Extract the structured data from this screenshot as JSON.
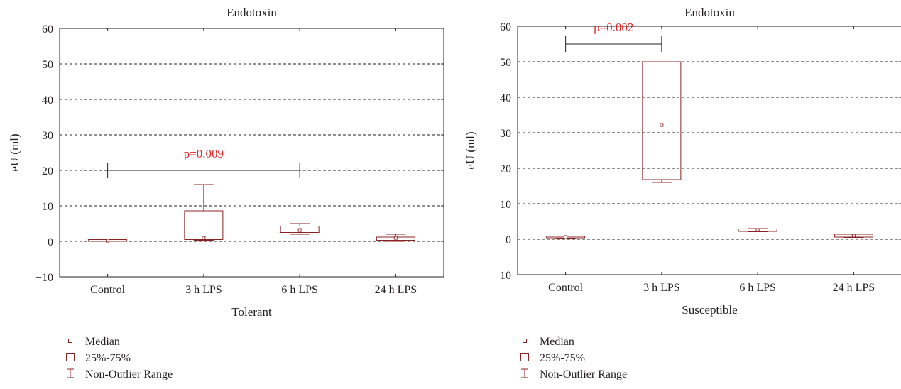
{
  "colors": {
    "box": "#8b2323",
    "pvalue": "#e02020",
    "axis": "#231f20",
    "grid": "#231f20"
  },
  "chart_data": [
    {
      "type": "box",
      "title": "Endotoxin",
      "xlabel": "Tolerant",
      "ylabel": "eU (ml)",
      "ylim": [
        -10,
        60
      ],
      "yticks": [
        "60",
        "50",
        "40",
        "30",
        "20",
        "10",
        "0",
        "−10"
      ],
      "categories": [
        "Control",
        "3 h LPS",
        "6 h LPS",
        "24 h LPS"
      ],
      "grid": "dashed horizontal at 10, 20, 30, 40, 50",
      "boxes": [
        {
          "category": "Control",
          "median": 0.2,
          "q1": 0.0,
          "q3": 0.5,
          "min": 0.0,
          "max": 0.6
        },
        {
          "category": "3 h LPS",
          "median": 1.0,
          "q1": 0.5,
          "q3": 8.6,
          "min": 0.3,
          "max": 16.0
        },
        {
          "category": "6 h LPS",
          "median": 3.2,
          "q1": 2.5,
          "q3": 4.3,
          "min": 2.0,
          "max": 5.0
        },
        {
          "category": "24 h LPS",
          "median": 1.0,
          "q1": 0.3,
          "q3": 1.2,
          "min": 0.0,
          "max": 2.0
        }
      ],
      "comparison": {
        "from": "Control",
        "to": "6 h LPS",
        "y": 20,
        "label": "p=0.009"
      },
      "legend": [
        "Median",
        "25%-75%",
        "Non-Outlier Range"
      ]
    },
    {
      "type": "box",
      "title": "Endotoxin",
      "xlabel": "Susceptible",
      "ylabel": "eU (ml)",
      "ylim": [
        -10,
        60
      ],
      "yticks": [
        "60",
        "50",
        "40",
        "30",
        "20",
        "10",
        "0",
        "−10"
      ],
      "categories": [
        "Control",
        "3 h LPS",
        "6 h LPS",
        "24 h LPS"
      ],
      "grid": "dashed horizontal at 10, 20, 30, 40, 50",
      "boxes": [
        {
          "category": "Control",
          "median": 0.6,
          "q1": 0.4,
          "q3": 0.8,
          "min": 0.3,
          "max": 0.9
        },
        {
          "category": "3 h LPS",
          "median": 32.2,
          "q1": 16.8,
          "q3": 50.0,
          "min": 16.0,
          "max": 50.0
        },
        {
          "category": "6 h LPS",
          "median": 2.5,
          "q1": 2.2,
          "q3": 2.9,
          "min": 2.1,
          "max": 3.0
        },
        {
          "category": "24 h LPS",
          "median": 1.0,
          "q1": 0.6,
          "q3": 1.4,
          "min": 0.5,
          "max": 1.5
        }
      ],
      "comparison": {
        "from": "Control",
        "to": "3 h LPS",
        "y": 55,
        "label": "p=0.002"
      },
      "legend": [
        "Median",
        "25%-75%",
        "Non-Outlier Range"
      ]
    }
  ]
}
